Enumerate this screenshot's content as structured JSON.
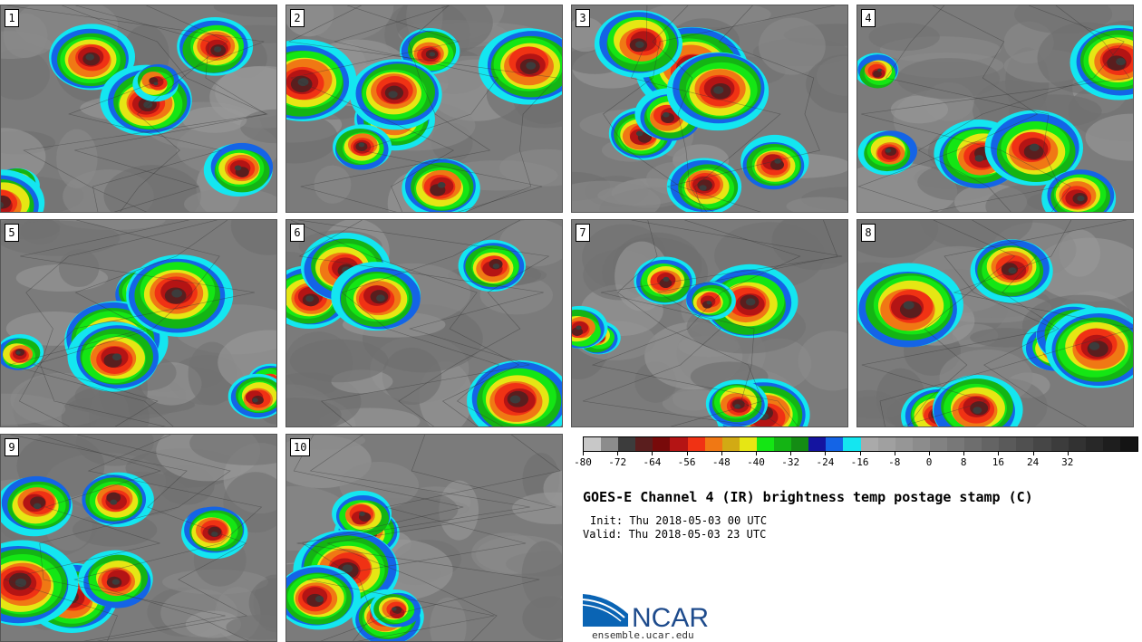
{
  "panels": [
    {
      "label": "1"
    },
    {
      "label": "2"
    },
    {
      "label": "3"
    },
    {
      "label": "4"
    },
    {
      "label": "5"
    },
    {
      "label": "6"
    },
    {
      "label": "7"
    },
    {
      "label": "8"
    },
    {
      "label": "9"
    },
    {
      "label": "10"
    }
  ],
  "colorbar": {
    "colors": [
      "#c8c8c8",
      "#8c8c8c",
      "#3c3c3c",
      "#5a1e1e",
      "#780a0a",
      "#b41414",
      "#f03214",
      "#f07814",
      "#d2aa14",
      "#e6e614",
      "#14e614",
      "#14b414",
      "#148c14",
      "#1414a0",
      "#1464e6",
      "#14e6f0",
      "#aaaaaa",
      "#a0a0a0",
      "#969696",
      "#8c8c8c",
      "#828282",
      "#787878",
      "#6e6e6e",
      "#646464",
      "#5a5a5a",
      "#505050",
      "#464646",
      "#3c3c3c",
      "#323232",
      "#282828",
      "#1e1e1e",
      "#141414"
    ],
    "ticks": [
      "-80",
      "-72",
      "-64",
      "-56",
      "-48",
      "-40",
      "-32",
      "-24",
      "-16",
      "-8",
      "0",
      "8",
      "16",
      "24",
      "32"
    ]
  },
  "title": "GOES-E Channel 4 (IR) brightness temp postage stamp (C)",
  "init": "Init: Thu 2018-05-03 00 UTC",
  "valid": "Valid: Thu 2018-05-03 23 UTC",
  "logo": {
    "name": "NCAR",
    "url": "ensemble.ucar.edu"
  }
}
